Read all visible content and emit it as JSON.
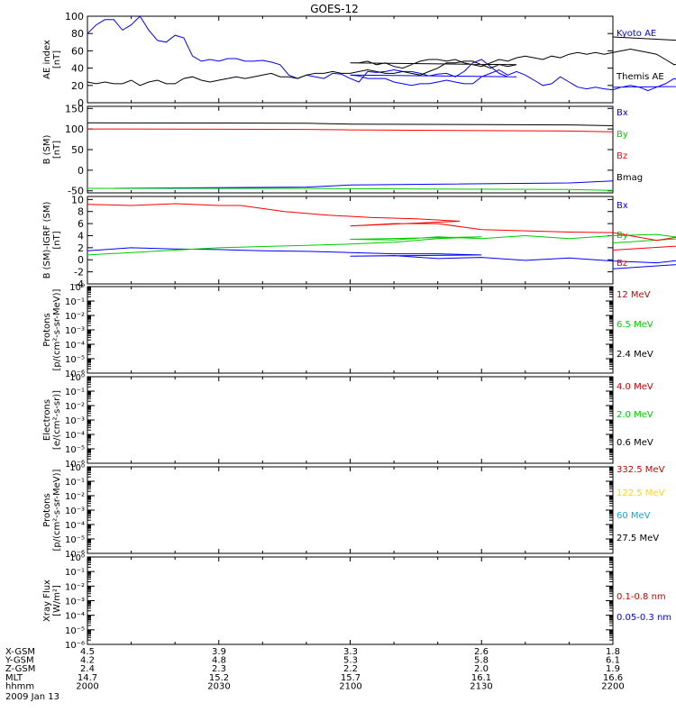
{
  "title": "GOES-12",
  "footer": {
    "rows": [
      {
        "label": "X-GSM",
        "values": [
          "4.5",
          "3.9",
          "3.3",
          "2.6",
          "1.8"
        ]
      },
      {
        "label": "Y-GSM",
        "values": [
          "4.2",
          "4.8",
          "5.3",
          "5.8",
          "6.1"
        ]
      },
      {
        "label": "Z-GSM",
        "values": [
          "2.4",
          "2.3",
          "2.2",
          "2.0",
          "1.9"
        ]
      },
      {
        "label": "MLT",
        "values": [
          "14.7",
          "15.2",
          "15.7",
          "16.1",
          "16.6"
        ]
      },
      {
        "label": "hhmm",
        "values": [
          "2000",
          "2030",
          "2100",
          "2130",
          "2200"
        ]
      }
    ],
    "date": "2009 Jan 13"
  },
  "chart_data": [
    {
      "type": "line",
      "ylabel": [
        "AE index",
        "[nT]"
      ],
      "ylim": [
        0,
        100
      ],
      "yticks": [
        "0",
        "20",
        "40",
        "60",
        "80",
        "100"
      ],
      "x": [
        2000,
        2200
      ],
      "series": [
        {
          "name": "Kyoto AE",
          "color": "#0000ff",
          "x": [
            2000,
            2002,
            2004,
            2006,
            2008,
            2010,
            2012,
            2014,
            2016,
            2018,
            2020,
            2022,
            2024,
            2026,
            2028,
            2030,
            2032,
            2034,
            2036,
            2038,
            2040,
            2042,
            2044,
            2046,
            2048,
            2050,
            2052,
            2054,
            2056,
            2058,
            2060,
            2062,
            2064,
            2066,
            2068,
            2070,
            2072,
            2074,
            2076,
            2078,
            2080,
            2082,
            2084,
            2086,
            2088,
            2090,
            2092,
            2094,
            2096,
            2098,
            2100,
            2102,
            2104,
            2106,
            2108,
            2110,
            2112,
            2114,
            2116,
            2118,
            2120,
            2122,
            2124,
            2126,
            2128,
            2130,
            2132,
            2134,
            2136,
            2138,
            2140,
            2142,
            2144,
            2146,
            2148,
            2150,
            2152,
            2154,
            2156,
            2158,
            2160,
            2162,
            2164,
            2166,
            2168,
            2170,
            2172,
            2174,
            2176,
            2178,
            2180,
            2182,
            2184,
            2186,
            2188,
            2190,
            2192,
            2194,
            2196,
            2198,
            2200
          ],
          "y": [
            80,
            90,
            96,
            96,
            84,
            90,
            100,
            84,
            72,
            70,
            78,
            75,
            54,
            48,
            50,
            48,
            51,
            51,
            48,
            48,
            49,
            47,
            44,
            32,
            28,
            32,
            30,
            28,
            34,
            33,
            28,
            24,
            36,
            35,
            36,
            38,
            36,
            36,
            34,
            31,
            33,
            34,
            30,
            36,
            46,
            50,
            42,
            34,
            30,
            30,
            32,
            31,
            28,
            28,
            28,
            24,
            22,
            20,
            22,
            22,
            24,
            26,
            24,
            22,
            22,
            30,
            34,
            38,
            32,
            36,
            32,
            26,
            20,
            22,
            30,
            24,
            18,
            16,
            18,
            16,
            15,
            18,
            20,
            18,
            14,
            18,
            22,
            28,
            24,
            20,
            22,
            26,
            22,
            20,
            22,
            40,
            36,
            30,
            24,
            20,
            18
          ]
        },
        {
          "name": "Themis AE",
          "color": "#000000",
          "x": [
            2000,
            2002,
            2004,
            2006,
            2008,
            2010,
            2012,
            2014,
            2016,
            2018,
            2020,
            2022,
            2024,
            2026,
            2028,
            2030,
            2032,
            2034,
            2036,
            2038,
            2040,
            2042,
            2044,
            2046,
            2048,
            2050,
            2052,
            2054,
            2056,
            2058,
            2060,
            2062,
            2064,
            2066,
            2068,
            2070,
            2072,
            2074,
            2076,
            2078,
            2080,
            2082,
            2084,
            2086,
            2088,
            2090,
            2092,
            2094,
            2096,
            2098,
            2100,
            2102,
            2104,
            2106,
            2108,
            2110,
            2112,
            2114,
            2116,
            2118,
            2120,
            2122,
            2124,
            2126,
            2128,
            2130,
            2132,
            2134,
            2136,
            2138,
            2140,
            2142,
            2144,
            2146,
            2148,
            2150,
            2152,
            2154,
            2156,
            2158,
            2160,
            2162,
            2164,
            2166,
            2168,
            2170,
            2172,
            2174,
            2176,
            2178,
            2180,
            2182,
            2184,
            2186,
            2188,
            2190,
            2192,
            2194,
            2196,
            2198,
            2200
          ],
          "y": [
            24,
            22,
            24,
            22,
            22,
            26,
            20,
            24,
            26,
            22,
            22,
            28,
            30,
            26,
            24,
            26,
            28,
            30,
            28,
            30,
            32,
            34,
            30,
            30,
            28,
            32,
            34,
            34,
            36,
            34,
            34,
            36,
            38,
            36,
            34,
            34,
            36,
            34,
            32,
            36,
            40,
            46,
            46,
            48,
            48,
            44,
            40,
            44,
            42,
            44,
            46,
            46,
            48,
            44,
            46,
            42,
            40,
            44,
            48,
            50,
            50,
            48,
            50,
            46,
            44,
            42,
            46,
            50,
            48,
            52,
            54,
            52,
            50,
            54,
            52,
            56,
            58,
            56,
            58,
            56,
            58,
            60,
            62,
            60,
            58,
            56,
            50,
            44,
            46,
            52,
            56,
            54,
            50,
            50,
            46,
            48,
            50,
            52,
            58,
            66,
            76
          ]
        }
      ]
    },
    {
      "type": "line",
      "ylabel": [
        "B (SM)",
        "[nT]"
      ],
      "ylim": [
        -55,
        155
      ],
      "yticks": [
        "-50",
        "0",
        "50",
        "100",
        "150"
      ],
      "series": [
        {
          "name": "Bx",
          "color": "#0000ff",
          "x": [
            2000,
            2050,
            2100,
            2150,
            2200
          ],
          "y": [
            -44,
            -41,
            -36,
            -31,
            -26
          ]
        },
        {
          "name": "By",
          "color": "#00cc00",
          "x": [
            2000,
            2050,
            2100,
            2150,
            2200
          ],
          "y": [
            -44,
            -44,
            -45,
            -47,
            -49
          ]
        },
        {
          "name": "Bz",
          "color": "#ff0000",
          "x": [
            2000,
            2050,
            2100,
            2150,
            2200
          ],
          "y": [
            100,
            99,
            98,
            95,
            93
          ]
        },
        {
          "name": "Bmag",
          "color": "#000000",
          "x": [
            2000,
            2050,
            2100,
            2150,
            2200
          ],
          "y": [
            115,
            114,
            112,
            110,
            108
          ]
        }
      ]
    },
    {
      "type": "line",
      "ylabel": [
        "B (SM)-IGRF (SM)",
        "[nT]"
      ],
      "ylim": [
        -4,
        10.5
      ],
      "yticks": [
        "-4",
        "-2",
        "0",
        "2",
        "4",
        "6",
        "8",
        "10"
      ],
      "series": [
        {
          "name": "Bx",
          "color": "#0000ff",
          "x": [
            2000,
            2010,
            2020,
            2030,
            2040,
            2050,
            2060,
            2070,
            2080,
            2090,
            2100,
            2110,
            2120,
            2130,
            2140,
            2150,
            2160,
            2170,
            2180,
            2190,
            2195,
            2200
          ],
          "y": [
            1.5,
            2.0,
            1.8,
            1.7,
            1.5,
            1.4,
            1.2,
            1.0,
            1.0,
            0.8,
            0.6,
            0.7,
            0.2,
            0.4,
            -0.1,
            0.3,
            -0.2,
            -0.5,
            0.3,
            -0.4,
            0.2,
            -1.5
          ]
        },
        {
          "name": "By",
          "color": "#00cc00",
          "x": [
            2000,
            2010,
            2020,
            2030,
            2040,
            2050,
            2060,
            2070,
            2080,
            2090,
            2100,
            2110,
            2120,
            2130,
            2140,
            2150,
            2160,
            2170,
            2180,
            2190,
            2195,
            2200
          ],
          "y": [
            0.8,
            1.2,
            1.6,
            2.0,
            2.2,
            2.4,
            2.6,
            2.9,
            3.5,
            3.8,
            3.4,
            3.3,
            3.8,
            3.5,
            4.0,
            3.5,
            4.0,
            4.2,
            3.2,
            3.8,
            4.4,
            2.8
          ]
        },
        {
          "name": "Bz",
          "color": "#ff0000",
          "x": [
            2000,
            2010,
            2020,
            2030,
            2035,
            2045,
            2055,
            2065,
            2075,
            2085,
            2100,
            2110,
            2120,
            2130,
            2140,
            2150,
            2160,
            2170,
            2180,
            2190,
            2195,
            2200
          ],
          "y": [
            9.2,
            9.0,
            9.3,
            9.0,
            9.0,
            8.0,
            7.4,
            7.0,
            6.8,
            6.4,
            5.6,
            6.0,
            6.0,
            5.0,
            4.8,
            4.6,
            4.5,
            3.2,
            4.4,
            3.0,
            3.2,
            1.6
          ]
        }
      ]
    },
    {
      "type": "line",
      "ylabel": [
        "Protons",
        "[p/(cm²-s-sr-MeV)]"
      ],
      "yscale": "log",
      "ylim": [
        1e-06,
        1
      ],
      "yticks": [
        "10⁻⁶",
        "10⁻⁵",
        "10⁻⁴",
        "10⁻³",
        "10⁻²",
        "10⁻¹",
        "10⁰"
      ],
      "series": [
        {
          "name": "12 MeV",
          "color": "#cc0000"
        },
        {
          "name": "6.5 MeV",
          "color": "#00cc00"
        },
        {
          "name": "2.4 MeV",
          "color": "#000000"
        }
      ]
    },
    {
      "type": "line",
      "ylabel": [
        "Electrons",
        "[e/(cm²-s-sr)]"
      ],
      "yscale": "log",
      "ylim": [
        1e-06,
        1
      ],
      "yticks": [
        "10⁻⁶",
        "10⁻⁵",
        "10⁻⁴",
        "10⁻³",
        "10⁻²",
        "10⁻¹",
        "10⁰"
      ],
      "series": [
        {
          "name": "4.0 MeV",
          "color": "#cc0000"
        },
        {
          "name": "2.0 MeV",
          "color": "#00cc00"
        },
        {
          "name": "0.6 MeV",
          "color": "#000000"
        }
      ]
    },
    {
      "type": "line",
      "ylabel": [
        "Protons",
        "[p/(cm²-s-sr-MeV)]"
      ],
      "yscale": "log",
      "ylim": [
        1e-06,
        1
      ],
      "yticks": [
        "10⁻⁶",
        "10⁻⁵",
        "10⁻⁴",
        "10⁻³",
        "10⁻²",
        "10⁻¹",
        "10⁰"
      ],
      "series": [
        {
          "name": "332.5 MeV",
          "color": "#cc0000"
        },
        {
          "name": "122.5 MeV",
          "color": "#ffd700"
        },
        {
          "name": "60 MeV",
          "color": "#00aaee"
        },
        {
          "name": "27.5 MeV",
          "color": "#000000"
        }
      ]
    },
    {
      "type": "line",
      "ylabel": [
        "Xray  Flux",
        "[W/m²]"
      ],
      "yscale": "log",
      "ylim": [
        1e-06,
        1
      ],
      "yticks": [
        "10⁻⁶",
        "10⁻⁵",
        "10⁻⁴",
        "10⁻³",
        "10⁻²",
        "10⁻¹",
        "10⁰"
      ],
      "series": [
        {
          "name": "0.1-0.8 nm",
          "color": "#cc0000"
        },
        {
          "name": "0.05-0.3 nm",
          "color": "#0000ff"
        }
      ]
    }
  ]
}
